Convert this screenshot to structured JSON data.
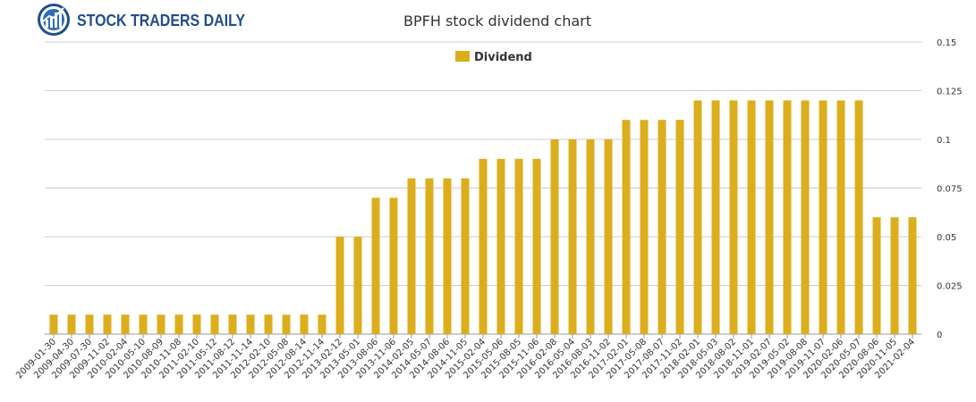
{
  "logo": {
    "text": "STOCK TRADERS DAILY",
    "color": "#1f4e8c"
  },
  "chart_data": {
    "type": "bar",
    "title": "BPFH stock dividend chart",
    "xlabel": "",
    "ylabel": "",
    "ylim": [
      0,
      0.15
    ],
    "yticks": [
      0,
      0.025,
      0.05,
      0.075,
      0.1,
      0.125,
      0.15
    ],
    "ytick_labels": [
      "0",
      "0.025",
      "0.05",
      "0.075",
      "0.1",
      "0.125",
      "0.15"
    ],
    "grid": true,
    "legend_position": "top-center",
    "series": [
      {
        "name": "Dividend",
        "color": "#dcae1d",
        "values": [
          0.01,
          0.01,
          0.01,
          0.01,
          0.01,
          0.01,
          0.01,
          0.01,
          0.01,
          0.01,
          0.01,
          0.01,
          0.01,
          0.01,
          0.01,
          0.01,
          0.05,
          0.05,
          0.07,
          0.07,
          0.08,
          0.08,
          0.08,
          0.08,
          0.09,
          0.09,
          0.09,
          0.09,
          0.1,
          0.1,
          0.1,
          0.1,
          0.11,
          0.11,
          0.11,
          0.11,
          0.12,
          0.12,
          0.12,
          0.12,
          0.12,
          0.12,
          0.12,
          0.12,
          0.12,
          0.12,
          0.06,
          0.06,
          0.06
        ]
      }
    ],
    "categories": [
      "2009-01-30",
      "2009-04-30",
      "2009-07-30",
      "2009-11-02",
      "2010-02-04",
      "2010-05-10",
      "2010-08-09",
      "2010-11-08",
      "2011-02-10",
      "2011-05-12",
      "2011-08-12",
      "2011-11-14",
      "2012-02-10",
      "2012-05-08",
      "2012-08-14",
      "2012-11-14",
      "2013-02-12",
      "2013-05-01",
      "2013-08-06",
      "2013-11-06",
      "2014-02-05",
      "2014-05-07",
      "2014-08-06",
      "2014-11-05",
      "2015-02-04",
      "2015-05-06",
      "2015-08-05",
      "2015-11-06",
      "2016-02-08",
      "2016-05-04",
      "2016-08-03",
      "2016-11-02",
      "2017-02-01",
      "2017-05-08",
      "2017-08-07",
      "2017-11-02",
      "2018-02-01",
      "2018-05-03",
      "2018-08-02",
      "2018-11-01",
      "2019-02-07",
      "2019-05-02",
      "2019-08-08",
      "2019-11-07",
      "2020-02-06",
      "2020-05-07",
      "2020-08-06",
      "2020-11-05",
      "2021-02-04"
    ]
  }
}
